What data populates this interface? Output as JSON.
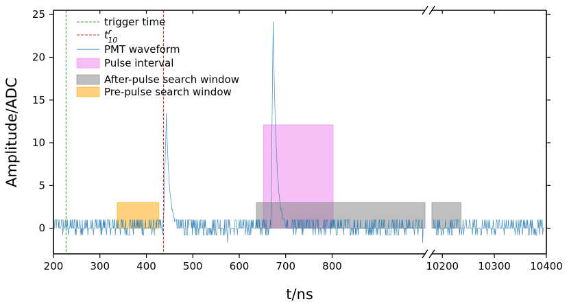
{
  "chart_data": {
    "type": "line",
    "xlabel": "t/ns",
    "ylabel": "Amplitude/ADC",
    "x_segments": [
      {
        "xlim": [
          200,
          1000
        ],
        "ticks": [
          200,
          300,
          400,
          500,
          600,
          700,
          800
        ]
      },
      {
        "xlim": [
          10180,
          10400
        ],
        "ticks": [
          10200,
          10300,
          10400
        ]
      }
    ],
    "ylim": [
      -3,
      25.5
    ],
    "yticks": [
      0,
      5,
      10,
      15,
      20,
      25
    ],
    "axis_break": true,
    "legend": {
      "position": "top-left",
      "entries": [
        {
          "label": "trigger time",
          "style": "dashed",
          "color": "#2ca02c"
        },
        {
          "label": "t",
          "sup": "r",
          "sub": "10",
          "style": "dashed",
          "color": "#d62728"
        },
        {
          "label": "PMT waveform",
          "style": "line",
          "color": "#1f77b4"
        },
        {
          "label": "Pulse interval",
          "style": "patch",
          "color": "#ee82ee"
        },
        {
          "label": "After-pulse search window",
          "style": "patch",
          "color": "#808080"
        },
        {
          "label": "Pre-pulse search window",
          "style": "patch",
          "color": "#ffa500"
        }
      ]
    },
    "vlines": [
      {
        "name": "trigger time",
        "x": 227,
        "color": "#2ca02c"
      },
      {
        "name": "t10r",
        "x": 437,
        "color": "#d62728"
      }
    ],
    "regions": [
      {
        "name": "Pre-pulse search window",
        "x0": 337,
        "x1": 427,
        "y0": 0,
        "y1": 3,
        "color": "#ffa500"
      },
      {
        "name": "Pulse interval",
        "x0": 652,
        "x1": 802,
        "y0": 0,
        "y1": 12.1,
        "color": "#ee82ee"
      },
      {
        "name": "After-pulse search window",
        "x0": 637,
        "x1": 1000,
        "y0": 0,
        "y1": 3,
        "color": "#808080"
      },
      {
        "name": "After-pulse search window (continued)",
        "x0": 10180,
        "x1": 10236,
        "y0": 0,
        "y1": 3,
        "color": "#808080"
      }
    ],
    "waveform": {
      "name": "PMT waveform",
      "color": "#1f77b4",
      "segment1_x": [
        200,
        996
      ],
      "segment2_x": [
        10183,
        10396
      ],
      "noise_levels": [
        -0.8,
        0,
        0,
        0,
        1,
        1
      ],
      "features": [
        {
          "kind": "pulse",
          "t0": 437,
          "peak_t": 443,
          "peak": 13.2,
          "tau": 7
        },
        {
          "kind": "pulse",
          "t0": 668,
          "peak_t": 673,
          "peak": 24.3,
          "tau": 7
        },
        {
          "kind": "dip",
          "t": 575,
          "value": -1.7
        },
        {
          "kind": "dip",
          "t": 995,
          "value": -1.7
        }
      ]
    }
  }
}
